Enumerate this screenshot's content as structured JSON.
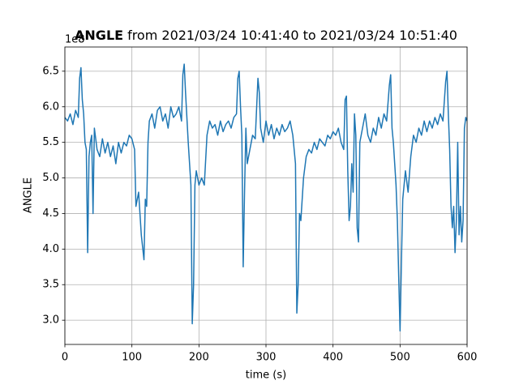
{
  "chart_data": {
    "type": "line",
    "title": {
      "bold": "ANGLE",
      "text": "from 2021/03/24 10:41:40 to 2021/03/24 10:51:40"
    },
    "offset_text": "1e8",
    "xlabel": "time (s)",
    "ylabel": "ANGLE",
    "color": "#1f77b4",
    "grid": true,
    "xlim": [
      0,
      600
    ],
    "xticks": [
      0,
      100,
      200,
      300,
      400,
      500,
      600
    ],
    "ylim": [
      2.66,
      6.84
    ],
    "yticks": [
      {
        "value": 3,
        "label": "3.0"
      },
      {
        "value": 3.5,
        "label": "3.5"
      },
      {
        "value": 4,
        "label": "4.0"
      },
      {
        "value": 4.5,
        "label": "4.5"
      },
      {
        "value": 5,
        "label": "5.0"
      },
      {
        "value": 5.5,
        "label": "5.5"
      },
      {
        "value": 6,
        "label": "6.0"
      },
      {
        "value": 6.5,
        "label": "6.5"
      }
    ],
    "x": [
      0,
      4,
      8,
      12,
      16,
      20,
      22,
      24,
      26,
      28,
      30,
      32,
      34,
      36,
      38,
      40,
      42,
      44,
      48,
      52,
      56,
      60,
      64,
      68,
      72,
      76,
      80,
      84,
      88,
      92,
      96,
      100,
      104,
      106,
      110,
      114,
      118,
      120,
      122,
      124,
      126,
      130,
      134,
      138,
      142,
      146,
      150,
      154,
      158,
      162,
      166,
      170,
      174,
      176,
      178,
      180,
      184,
      186,
      188,
      190,
      192,
      194,
      196,
      200,
      204,
      208,
      212,
      216,
      220,
      224,
      228,
      232,
      236,
      240,
      244,
      248,
      252,
      256,
      258,
      260,
      262,
      264,
      266,
      268,
      270,
      272,
      276,
      280,
      284,
      288,
      290,
      292,
      296,
      300,
      304,
      308,
      312,
      316,
      320,
      324,
      328,
      332,
      336,
      340,
      344,
      346,
      348,
      350,
      352,
      356,
      360,
      364,
      368,
      372,
      376,
      380,
      384,
      388,
      392,
      396,
      400,
      404,
      408,
      412,
      416,
      418,
      420,
      422,
      424,
      426,
      428,
      430,
      432,
      434,
      436,
      438,
      440,
      444,
      448,
      452,
      456,
      460,
      464,
      468,
      472,
      476,
      480,
      484,
      486,
      488,
      490,
      494,
      496,
      498,
      500,
      502,
      504,
      508,
      512,
      516,
      520,
      524,
      528,
      532,
      536,
      540,
      544,
      548,
      552,
      556,
      560,
      564,
      568,
      570,
      572,
      574,
      576,
      578,
      580,
      582,
      584,
      586,
      588,
      590,
      592,
      594,
      596,
      598,
      600
    ],
    "values": [
      5.85,
      5.8,
      5.9,
      5.75,
      5.95,
      5.85,
      6.4,
      6.55,
      6.1,
      5.9,
      5.5,
      5.4,
      3.95,
      5.3,
      5.5,
      5.6,
      4.5,
      5.7,
      5.4,
      5.3,
      5.55,
      5.35,
      5.5,
      5.3,
      5.45,
      5.2,
      5.5,
      5.35,
      5.5,
      5.45,
      5.6,
      5.55,
      5.4,
      4.6,
      4.8,
      4.2,
      3.85,
      4.7,
      4.6,
      5.5,
      5.8,
      5.9,
      5.7,
      5.95,
      6.0,
      5.8,
      5.9,
      5.7,
      6.0,
      5.85,
      5.9,
      6.0,
      5.8,
      6.45,
      6.6,
      6.2,
      5.5,
      5.2,
      4.9,
      2.95,
      3.5,
      4.9,
      5.1,
      4.9,
      5.0,
      4.9,
      5.6,
      5.8,
      5.7,
      5.75,
      5.6,
      5.8,
      5.65,
      5.75,
      5.8,
      5.7,
      5.85,
      5.9,
      6.4,
      6.5,
      6.0,
      5.6,
      3.75,
      4.8,
      5.7,
      5.2,
      5.4,
      5.6,
      5.55,
      6.4,
      6.2,
      5.7,
      5.5,
      5.8,
      5.6,
      5.75,
      5.55,
      5.7,
      5.6,
      5.75,
      5.65,
      5.7,
      5.8,
      5.6,
      5.2,
      3.1,
      3.5,
      4.5,
      4.4,
      5.0,
      5.3,
      5.4,
      5.35,
      5.5,
      5.4,
      5.55,
      5.5,
      5.45,
      5.6,
      5.55,
      5.65,
      5.6,
      5.7,
      5.5,
      5.4,
      6.1,
      6.15,
      5.1,
      4.4,
      4.6,
      5.2,
      4.8,
      5.9,
      5.6,
      4.3,
      4.1,
      5.5,
      5.7,
      5.9,
      5.6,
      5.5,
      5.7,
      5.6,
      5.85,
      5.7,
      5.9,
      5.8,
      6.3,
      6.45,
      5.7,
      5.5,
      4.9,
      4.4,
      3.6,
      2.85,
      3.8,
      4.7,
      5.1,
      4.8,
      5.3,
      5.6,
      5.5,
      5.7,
      5.6,
      5.8,
      5.65,
      5.8,
      5.7,
      5.85,
      5.75,
      5.9,
      5.8,
      6.35,
      6.5,
      5.9,
      5.4,
      4.6,
      4.3,
      4.6,
      3.95,
      4.4,
      5.5,
      4.2,
      4.6,
      4.1,
      4.4,
      5.7,
      5.85,
      5.8
    ]
  }
}
